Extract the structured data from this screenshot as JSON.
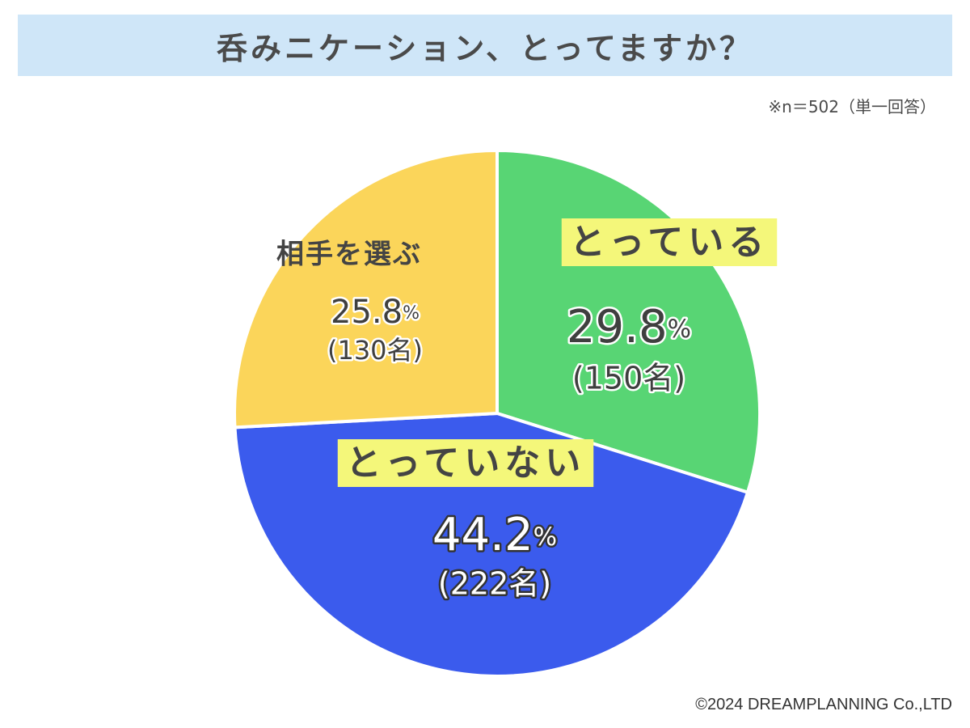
{
  "header": {
    "title": "呑みニケーション、とってますか？"
  },
  "note": "※n＝502（単一回答）",
  "footer": {
    "copyright": "©2024 DREAMPLANNING Co.,LTD"
  },
  "chart_data": {
    "type": "pie",
    "total_n": 502,
    "slices": [
      {
        "label": "とっている",
        "percent": 29.8,
        "percent_text": "29.8",
        "count_text": "(150名)",
        "count": 150,
        "color": "#58d574",
        "highlight": true
      },
      {
        "label": "とっていない",
        "percent": 44.2,
        "percent_text": "44.2",
        "count_text": "(222名)",
        "count": 222,
        "color": "#3b5bed",
        "highlight": true
      },
      {
        "label": "相手を選ぶ",
        "percent": 25.8,
        "percent_text": "25.8",
        "count_text": "(130名)",
        "count": 130,
        "color": "#fbd55a",
        "highlight": false
      }
    ],
    "percent_unit": "%",
    "label_highlight_color": "#f4f77a"
  }
}
